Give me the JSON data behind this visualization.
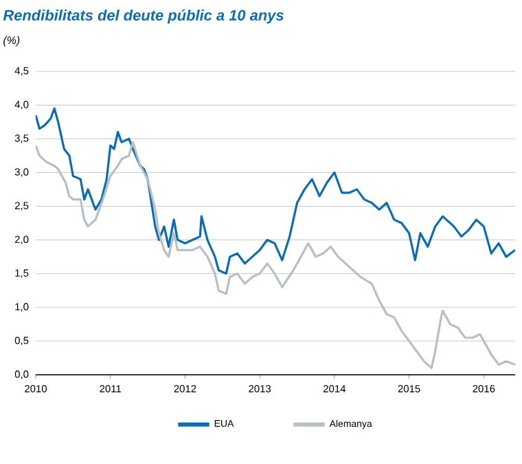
{
  "chart_data": {
    "type": "line",
    "title": "Rendibilitats del deute públic a 10 anys",
    "subtitle": "(%)",
    "xlim": [
      2010,
      2016.42
    ],
    "xticks": [
      2010,
      2011,
      2012,
      2013,
      2014,
      2015,
      2016
    ],
    "ylim": [
      0,
      4.5
    ],
    "yticks": [
      {
        "value": 0,
        "label": "0,0"
      },
      {
        "value": 0.5,
        "label": "0,5"
      },
      {
        "value": 1,
        "label": "1,0"
      },
      {
        "value": 1.5,
        "label": "1,5"
      },
      {
        "value": 2,
        "label": "2,0"
      },
      {
        "value": 2.5,
        "label": "2,5"
      },
      {
        "value": 3,
        "label": "3,0"
      },
      {
        "value": 3.5,
        "label": "3,5"
      },
      {
        "value": 4,
        "label": "4,0"
      },
      {
        "value": 4.5,
        "label": "4,5"
      }
    ],
    "grid": "y",
    "legend": "bottom",
    "marker": "none",
    "line_style": "solid",
    "series": [
      {
        "name": "EUA",
        "color": "#0b6cb5",
        "x": [
          2010.0,
          2010.05,
          2010.12,
          2010.2,
          2010.25,
          2010.3,
          2010.38,
          2010.45,
          2010.5,
          2010.6,
          2010.65,
          2010.7,
          2010.8,
          2010.88,
          2010.95,
          2011.0,
          2011.05,
          2011.1,
          2011.15,
          2011.25,
          2011.3,
          2011.4,
          2011.45,
          2011.5,
          2011.55,
          2011.6,
          2011.65,
          2011.72,
          2011.78,
          2011.85,
          2011.9,
          2012.0,
          2012.1,
          2012.2,
          2012.22,
          2012.3,
          2012.4,
          2012.45,
          2012.55,
          2012.6,
          2012.7,
          2012.8,
          2012.9,
          2013.0,
          2013.1,
          2013.2,
          2013.3,
          2013.4,
          2013.5,
          2013.6,
          2013.7,
          2013.8,
          2013.9,
          2014.0,
          2014.1,
          2014.2,
          2014.3,
          2014.4,
          2014.5,
          2014.6,
          2014.7,
          2014.8,
          2014.9,
          2015.0,
          2015.08,
          2015.15,
          2015.25,
          2015.35,
          2015.45,
          2015.5,
          2015.6,
          2015.7,
          2015.8,
          2015.9,
          2016.0,
          2016.1,
          2016.2,
          2016.3,
          2016.42
        ],
        "values": [
          3.85,
          3.65,
          3.7,
          3.8,
          3.95,
          3.75,
          3.35,
          3.25,
          2.95,
          2.9,
          2.6,
          2.75,
          2.45,
          2.6,
          2.9,
          3.4,
          3.35,
          3.6,
          3.45,
          3.5,
          3.35,
          3.1,
          3.05,
          2.9,
          2.55,
          2.2,
          2.0,
          2.2,
          1.9,
          2.3,
          2.0,
          1.95,
          2.0,
          2.05,
          2.35,
          2.0,
          1.75,
          1.55,
          1.5,
          1.75,
          1.8,
          1.65,
          1.75,
          1.85,
          2.0,
          1.95,
          1.7,
          2.05,
          2.55,
          2.75,
          2.9,
          2.65,
          2.85,
          3.0,
          2.7,
          2.7,
          2.75,
          2.6,
          2.55,
          2.45,
          2.55,
          2.3,
          2.25,
          2.1,
          1.7,
          2.1,
          1.9,
          2.2,
          2.35,
          2.3,
          2.2,
          2.05,
          2.15,
          2.3,
          2.2,
          1.8,
          1.95,
          1.75,
          1.85
        ]
      },
      {
        "name": "Alemanya",
        "color": "#b5bfc4",
        "x": [
          2010.0,
          2010.05,
          2010.15,
          2010.25,
          2010.3,
          2010.4,
          2010.45,
          2010.5,
          2010.6,
          2010.65,
          2010.7,
          2010.8,
          2010.9,
          2011.0,
          2011.1,
          2011.15,
          2011.25,
          2011.3,
          2011.4,
          2011.5,
          2011.6,
          2011.65,
          2011.72,
          2011.78,
          2011.85,
          2011.9,
          2012.0,
          2012.1,
          2012.2,
          2012.3,
          2012.4,
          2012.45,
          2012.55,
          2012.6,
          2012.7,
          2012.8,
          2012.9,
          2013.0,
          2013.1,
          2013.2,
          2013.3,
          2013.45,
          2013.55,
          2013.65,
          2013.75,
          2013.85,
          2013.95,
          2014.05,
          2014.2,
          2014.35,
          2014.5,
          2014.6,
          2014.7,
          2014.8,
          2014.9,
          2015.0,
          2015.1,
          2015.2,
          2015.3,
          2015.35,
          2015.42,
          2015.45,
          2015.55,
          2015.65,
          2015.75,
          2015.85,
          2015.95,
          2016.0,
          2016.1,
          2016.2,
          2016.3,
          2016.42
        ],
        "values": [
          3.4,
          3.25,
          3.15,
          3.1,
          3.05,
          2.85,
          2.65,
          2.6,
          2.6,
          2.3,
          2.2,
          2.3,
          2.6,
          2.95,
          3.1,
          3.2,
          3.25,
          3.45,
          3.1,
          2.9,
          2.45,
          2.1,
          1.85,
          1.75,
          2.1,
          1.85,
          1.85,
          1.85,
          1.9,
          1.75,
          1.5,
          1.25,
          1.2,
          1.45,
          1.5,
          1.35,
          1.45,
          1.5,
          1.65,
          1.5,
          1.3,
          1.55,
          1.75,
          1.95,
          1.75,
          1.8,
          1.9,
          1.75,
          1.6,
          1.45,
          1.35,
          1.1,
          0.9,
          0.85,
          0.65,
          0.5,
          0.35,
          0.2,
          0.1,
          0.35,
          0.8,
          0.95,
          0.75,
          0.7,
          0.55,
          0.55,
          0.6,
          0.5,
          0.3,
          0.15,
          0.2,
          0.15
        ]
      }
    ]
  }
}
